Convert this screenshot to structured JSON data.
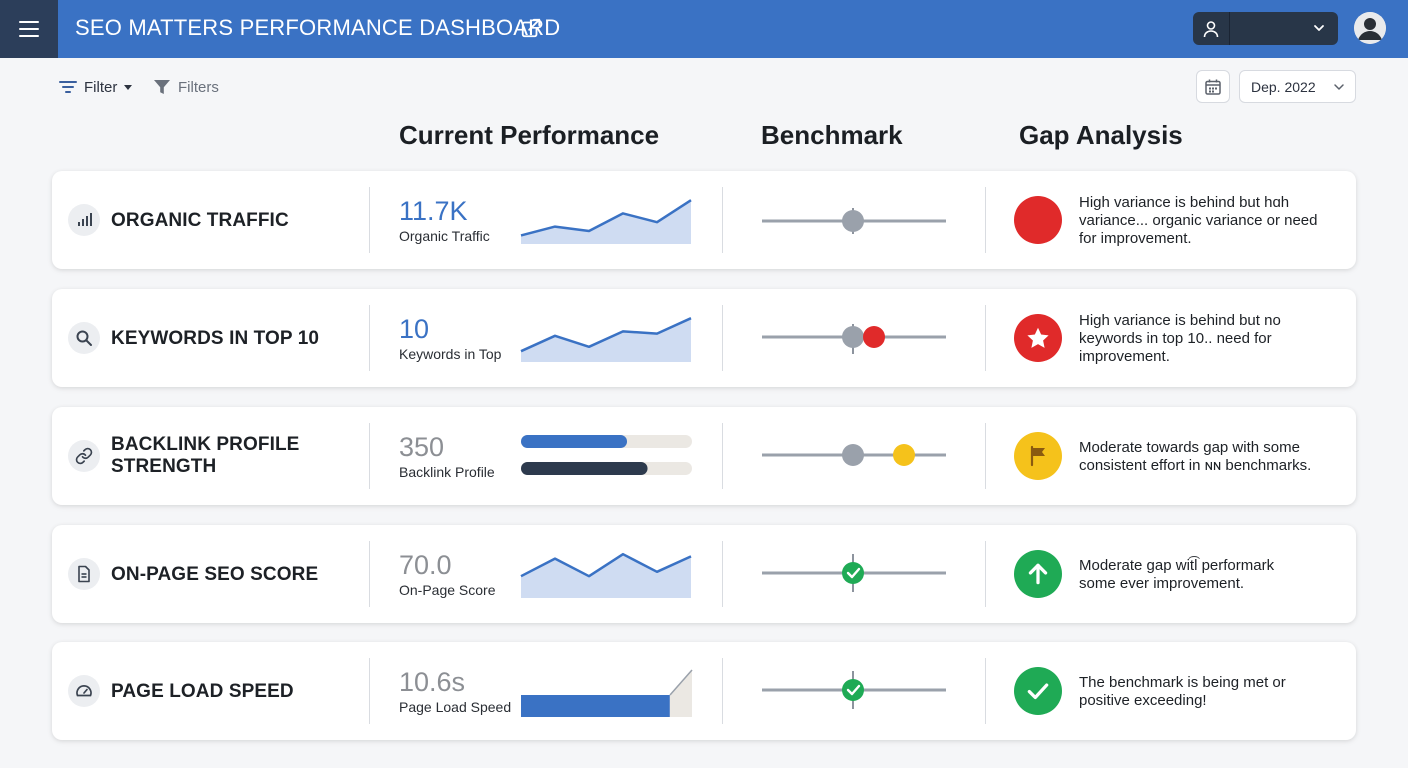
{
  "header": {
    "title": "SEO MATTERS PERFORMANCE DASHBOARD",
    "menu_icon": "hamburger-menu-icon",
    "user_select_value": ""
  },
  "toolbar": {
    "filter_label": "Filter",
    "filters_label": "Filters",
    "date_value": "Dep. 2022"
  },
  "columns": {
    "current": "Current Performance",
    "benchmark": "Benchmark",
    "gap": "Gap Analysis"
  },
  "colors": {
    "header": "#3a72c4",
    "red": "#e02a2a",
    "yellow": "#f5c21b",
    "green": "#1faa55",
    "gray_knob": "#9aa1ab"
  },
  "rows": [
    {
      "name_line1": "ORGANIC TRAFFIC",
      "name_line2": "",
      "icon": "bar-chart-icon",
      "value": "11.7K",
      "sub": "Organic Traffic",
      "trend": [
        0.15,
        0.35,
        0.25,
        0.65,
        0.45,
        0.95
      ],
      "status": "red",
      "status_icon": "red-circle-icon",
      "gap": [
        "High variance is behind but hɑh",
        "variance... organic variance or need",
        "for improvement."
      ]
    },
    {
      "name_line1": "KEYWORDS IN TOP 10",
      "name_line2": "",
      "icon": "search-icon",
      "value": "10",
      "sub": "Keywords in Top",
      "trend": [
        0.2,
        0.55,
        0.3,
        0.65,
        0.6,
        0.95
      ],
      "status": "red",
      "status_icon": "star-icon",
      "gap": [
        "High variance is behind but no",
        "keywords in top 10.. need for",
        "improvement."
      ]
    },
    {
      "name_line1": "BACKLINK PROFILE",
      "name_line2": "STRENGTH",
      "icon": "link-icon",
      "value": "350",
      "sub": "Backlink Profile",
      "bars": [
        0.62,
        0.74
      ],
      "status": "yellow",
      "status_icon": "flag-icon",
      "gap": [
        "Moderate towards gap with some",
        "consistent effort in ɴɴ benchmarks."
      ]
    },
    {
      "name_line1": "ON-PAGE SEO SCORE",
      "name_line2": "",
      "icon": "document-icon",
      "value": "70.0",
      "sub": "On-Page Score",
      "trend": [
        0.45,
        0.85,
        0.45,
        0.95,
        0.55,
        0.9
      ],
      "status": "green",
      "status_icon": "arrow-up-icon",
      "gap": [
        "Moderate gap wit͡l performark",
        "some ever improvement."
      ]
    },
    {
      "name_line1": "PAGE LOAD SPEED",
      "name_line2": "",
      "icon": "speedometer-icon",
      "value": "10.6s",
      "sub": "Page Load Speed",
      "progress": 0.87,
      "status": "green",
      "status_icon": "checkmark-icon",
      "gap": [
        "The benchmark is being met or",
        "positive exceeding!"
      ]
    }
  ]
}
